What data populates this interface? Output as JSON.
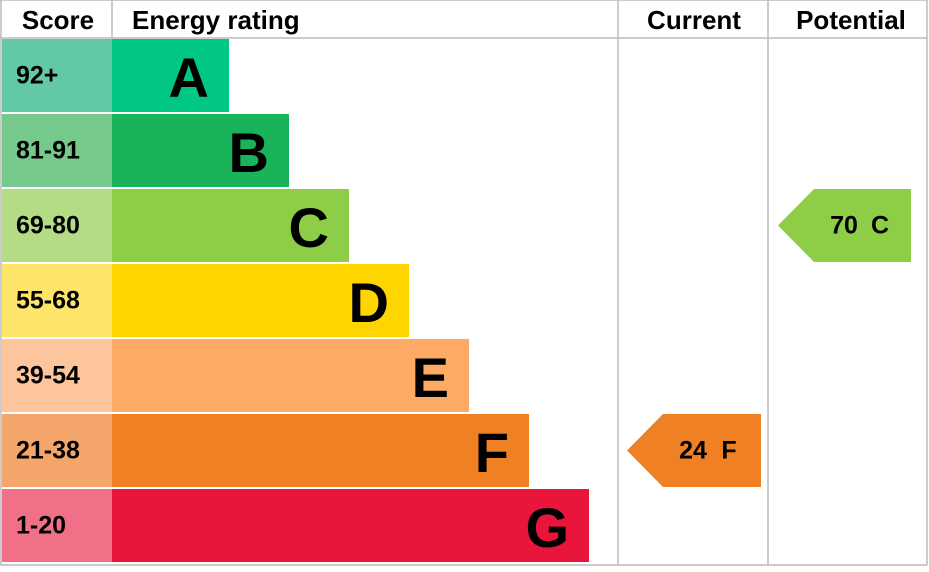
{
  "header": {
    "score": "Score",
    "rating": "Energy rating",
    "current": "Current",
    "potential": "Potential"
  },
  "bands": [
    {
      "score": "92+",
      "letter": "A",
      "color": "#00c781",
      "score_color": "#63c8a5"
    },
    {
      "score": "81-91",
      "letter": "B",
      "color": "#19b459",
      "score_color": "#74c98b"
    },
    {
      "score": "69-80",
      "letter": "C",
      "color": "#8dce46",
      "score_color": "#b3dc85"
    },
    {
      "score": "55-68",
      "letter": "D",
      "color": "#ffd500",
      "score_color": "#ffe46a"
    },
    {
      "score": "39-54",
      "letter": "E",
      "color": "#fcaa65",
      "score_color": "#fcc59c"
    },
    {
      "score": "21-38",
      "letter": "F",
      "color": "#ef8023",
      "score_color": "#f4a66a"
    },
    {
      "score": "1-20",
      "letter": "G",
      "color": "#e9153b",
      "score_color": "#f07088"
    }
  ],
  "current": {
    "value": 24,
    "letter": "F"
  },
  "potential": {
    "value": 70,
    "letter": "C"
  }
}
